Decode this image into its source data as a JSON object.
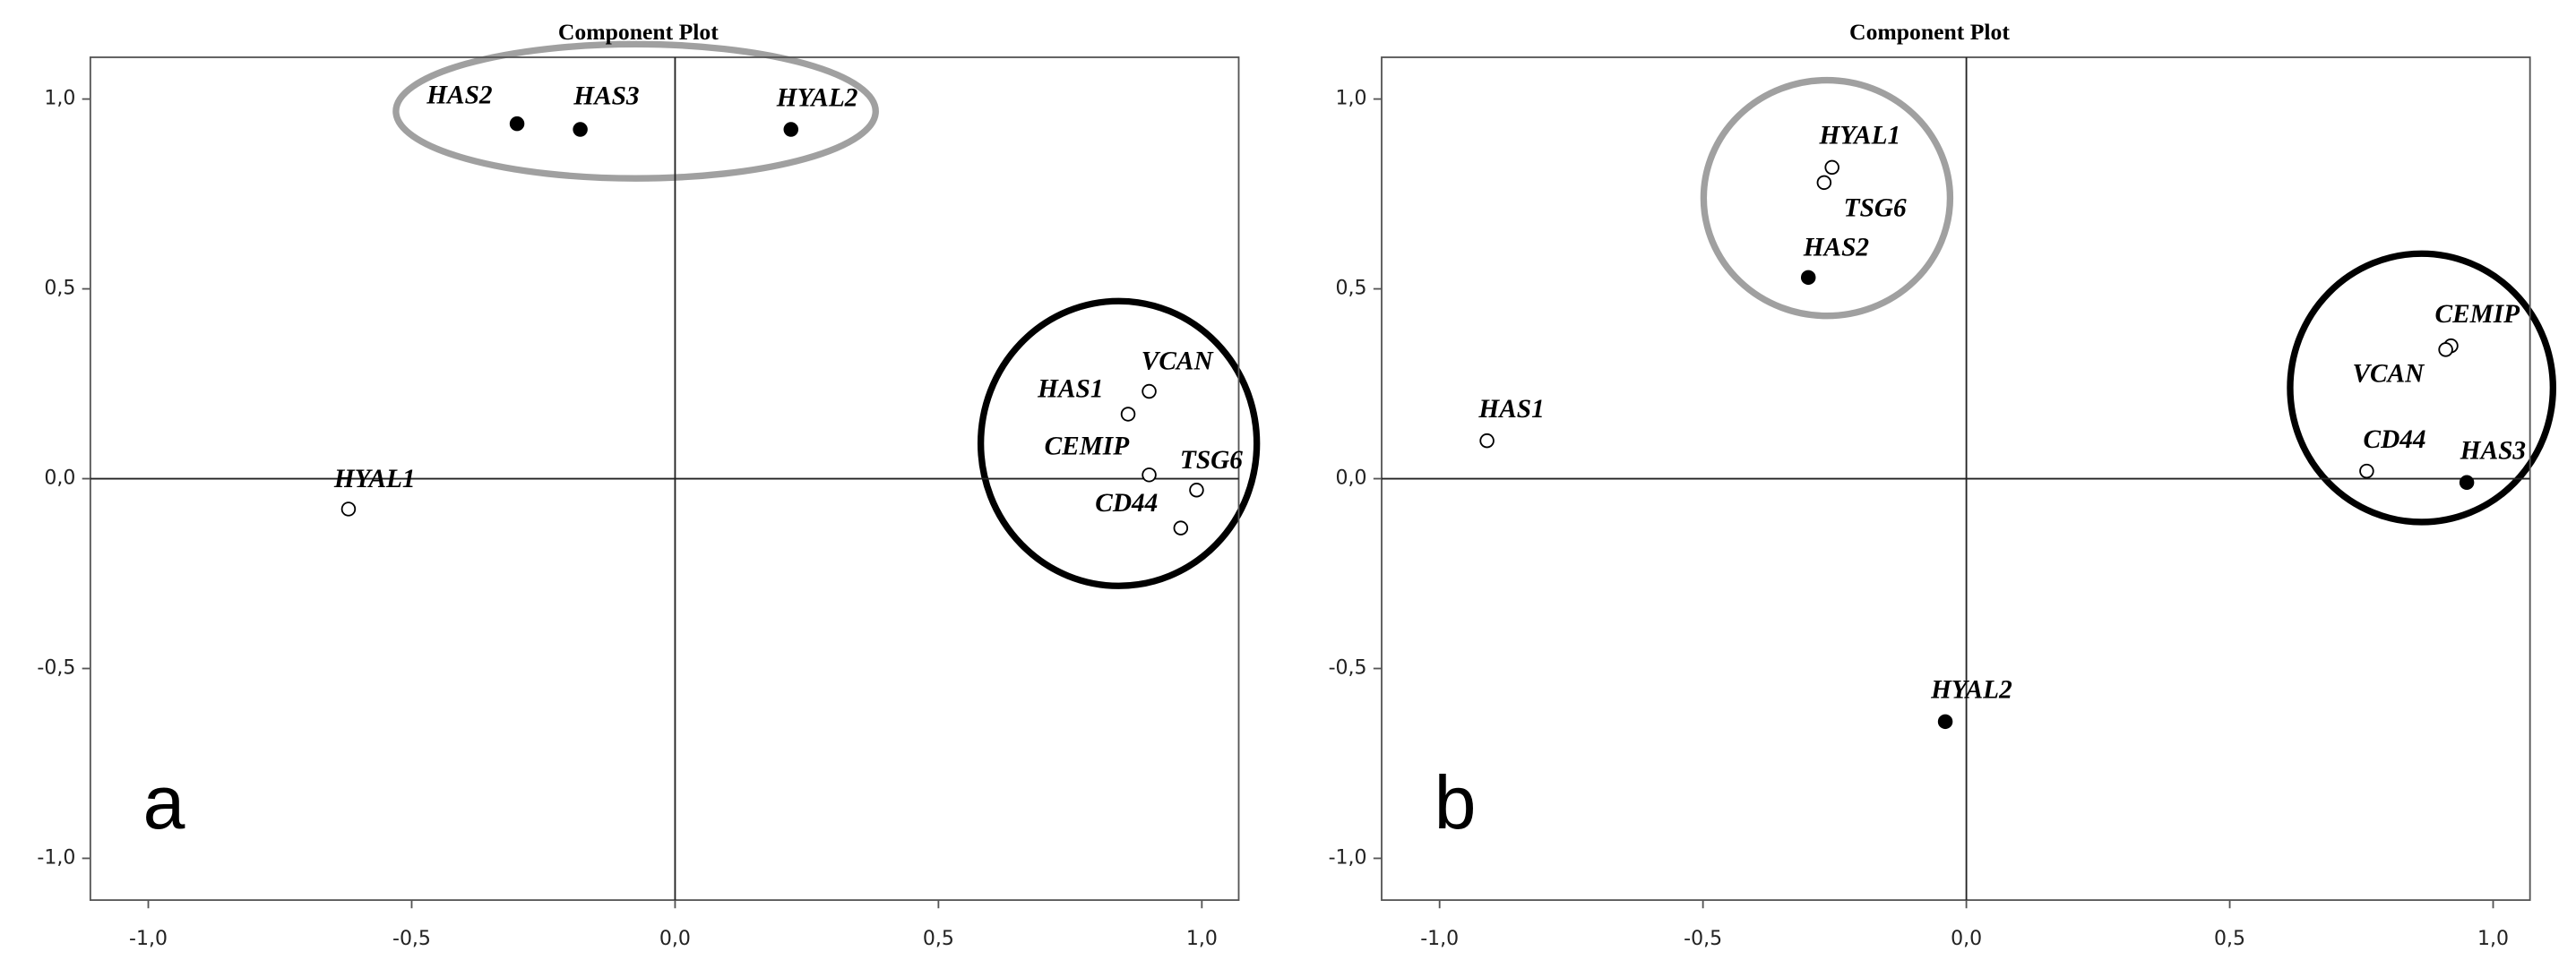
{
  "chart_data": [
    {
      "type": "scatter",
      "title": "Component Plot",
      "panel_label": "a",
      "x": [
        -0.3,
        -0.18,
        0.22,
        0.86,
        0.9,
        0.9,
        0.99,
        0.96,
        -0.62
      ],
      "values": [
        0.935,
        0.92,
        0.92,
        0.17,
        0.23,
        0.01,
        -0.03,
        -0.13,
        -0.08
      ],
      "point_labels": [
        "HAS2",
        "HAS3",
        "HYAL2",
        "HAS1",
        "VCAN",
        "CEMIP",
        "TSG6",
        "CD44",
        "HYAL1"
      ],
      "filled": [
        true,
        true,
        true,
        false,
        false,
        false,
        false,
        false,
        false
      ],
      "color": "#000000",
      "xlim": [
        -1.11,
        1.07
      ],
      "ylim": [
        -1.11,
        1.11
      ],
      "xticks": [
        {
          "value": -1,
          "label": "-1,0"
        },
        {
          "value": -0.5,
          "label": "-0,5"
        },
        {
          "value": 0,
          "label": "0,0"
        },
        {
          "value": 0.5,
          "label": "0,5"
        },
        {
          "value": 1,
          "label": "1,0"
        }
      ],
      "yticks": [
        {
          "value": -1,
          "label": "-1,0"
        },
        {
          "value": -0.5,
          "label": "-0,5"
        },
        {
          "value": 0,
          "label": "0,0"
        },
        {
          "value": 0.5,
          "label": "0,5"
        },
        {
          "value": 1,
          "label": "1,0"
        }
      ]
    },
    {
      "type": "scatter",
      "title": "Component Plot",
      "panel_label": "b",
      "x": [
        -0.255,
        -0.27,
        -0.3,
        -0.91,
        0.92,
        0.91,
        0.76,
        0.95,
        -0.04
      ],
      "values": [
        0.82,
        0.78,
        0.53,
        0.1,
        0.35,
        0.34,
        0.02,
        -0.01,
        -0.64
      ],
      "point_labels": [
        "HYAL1",
        "TSG6",
        "HAS2",
        "HAS1",
        "CEMIP",
        "VCAN",
        "CD44",
        "HAS3",
        "HYAL2"
      ],
      "filled": [
        false,
        false,
        true,
        false,
        false,
        false,
        false,
        true,
        true
      ],
      "color": "#000000",
      "xlim": [
        -1.11,
        1.07
      ],
      "ylim": [
        -1.11,
        1.11
      ],
      "xticks": [
        {
          "value": -1,
          "label": "-1,0"
        },
        {
          "value": -0.5,
          "label": "-0,5"
        },
        {
          "value": 0,
          "label": "0,0"
        },
        {
          "value": 0.5,
          "label": "0,5"
        },
        {
          "value": 1,
          "label": "1,0"
        }
      ],
      "yticks": [
        {
          "value": -1,
          "label": "-1,0"
        },
        {
          "value": -0.5,
          "label": "-0,5"
        },
        {
          "value": 0,
          "label": "0,0"
        },
        {
          "value": 0.5,
          "label": "0,5"
        },
        {
          "value": 1,
          "label": "1,0"
        }
      ]
    }
  ]
}
